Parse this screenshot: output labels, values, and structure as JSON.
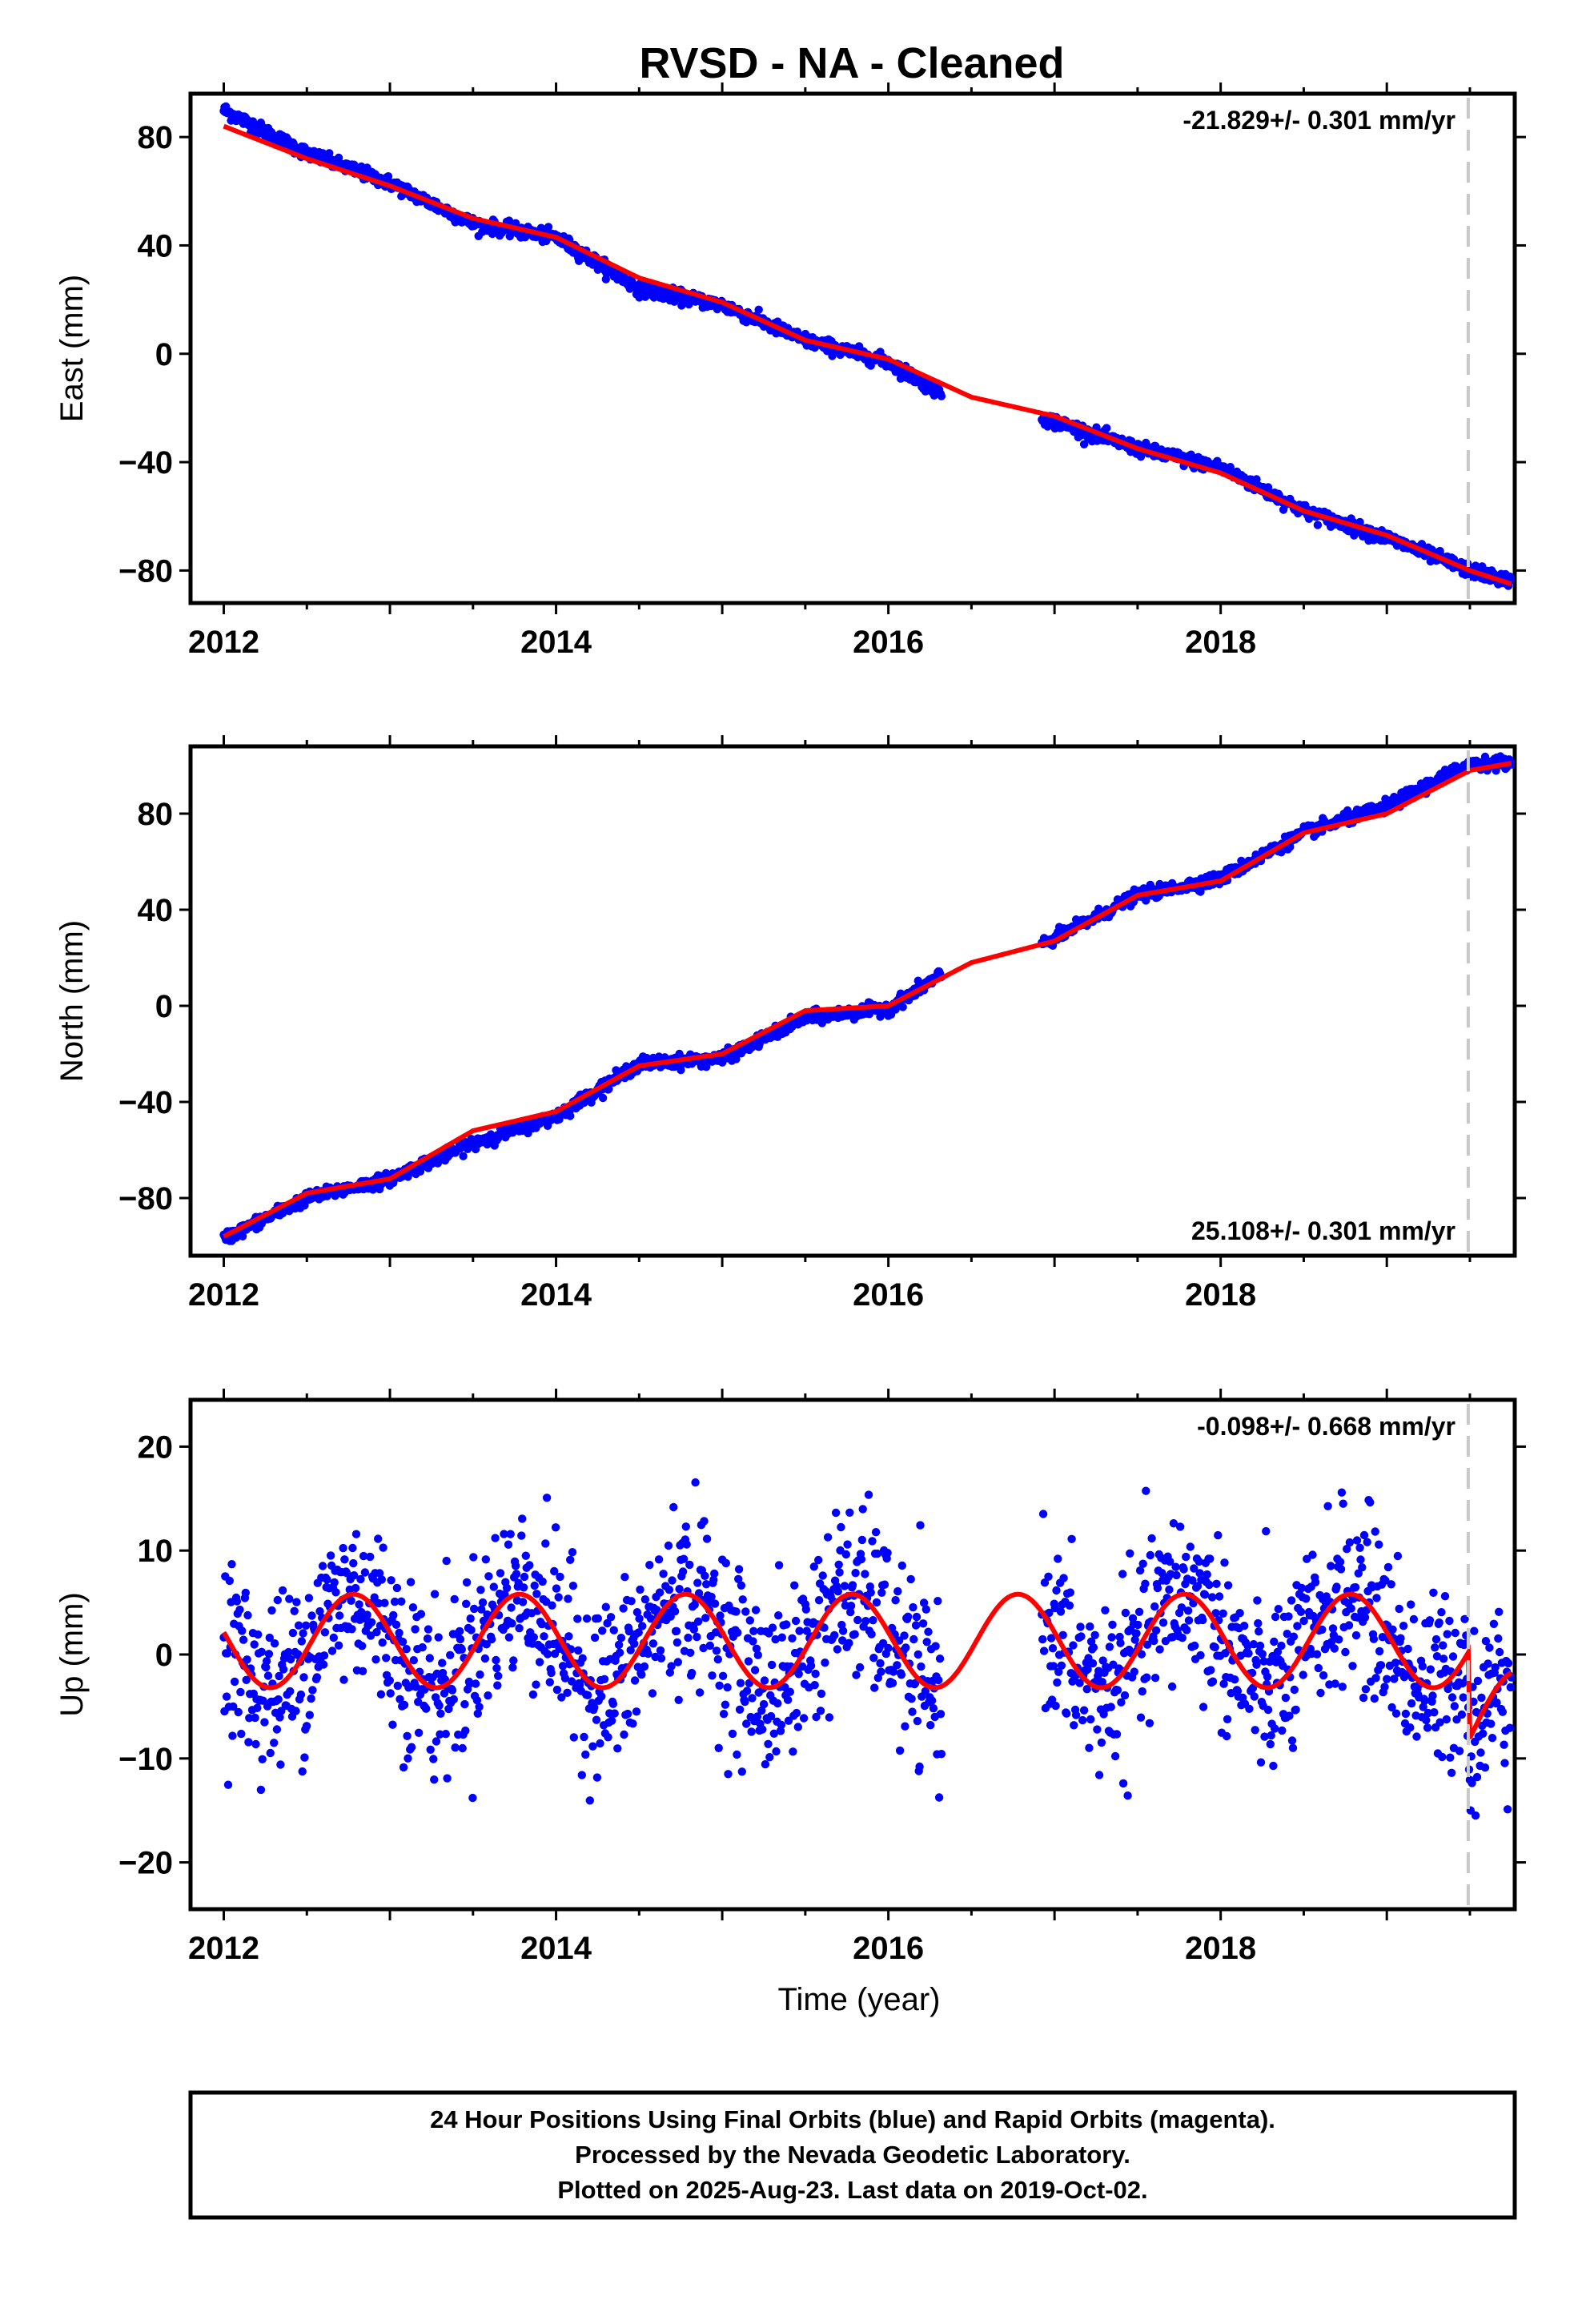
{
  "title": "RVSD  - NA - Cleaned",
  "footer": {
    "line1": "24 Hour Positions Using Final Orbits (blue) and Rapid Orbits (magenta).",
    "line2": "Processed by the Nevada Geodetic Laboratory.",
    "line3": "Plotted on 2025-Aug-23. Last data on 2019-Oct-02."
  },
  "colors": {
    "data": "#0000ff",
    "model": "#ff0000",
    "marker": "#c8c8c8"
  },
  "chart_data": [
    {
      "type": "scatter",
      "name": "east",
      "ylabel": "East (mm)",
      "xlabel": "",
      "xlim": [
        2011.8,
        2019.77
      ],
      "ylim": [
        -92,
        96
      ],
      "xticks": [
        2012,
        2014,
        2016,
        2018
      ],
      "xtick_labels": [
        "2012",
        "2014",
        "2016",
        "2018"
      ],
      "yticks": [
        80,
        40,
        0,
        -40,
        -80
      ],
      "ytick_labels": [
        "80",
        "40",
        "0",
        "−40",
        "−80"
      ],
      "rate_text": "-21.829+/- 0.301 mm/yr",
      "rate_position": "top-right",
      "equipment_change_x": 2019.49,
      "gaps": [
        [
          2016.32,
          2016.92
        ]
      ],
      "data_x": [
        2012.0,
        2012.5,
        2013.0,
        2013.5,
        2014.0,
        2014.5,
        2015.0,
        2015.5,
        2016.0,
        2016.3,
        2017.0,
        2017.5,
        2018.0,
        2018.5,
        2019.0,
        2019.5,
        2019.75
      ],
      "data_y": [
        90,
        74,
        63,
        48,
        43,
        24,
        18,
        5,
        -3,
        -14,
        -25,
        -35,
        -42,
        -58,
        -68,
        -80,
        -84
      ],
      "model_x": [
        2012.0,
        2012.5,
        2013.0,
        2013.5,
        2014.0,
        2014.5,
        2015.0,
        2015.5,
        2016.0,
        2016.5,
        2017.0,
        2017.5,
        2018.0,
        2018.5,
        2019.0,
        2019.5,
        2019.75
      ],
      "model_y": [
        84,
        72,
        62,
        50,
        43,
        28,
        19,
        5,
        -2,
        -16,
        -23,
        -35,
        -44,
        -58,
        -67,
        -80,
        -85
      ],
      "noise": 2.2
    },
    {
      "type": "scatter",
      "name": "north",
      "ylabel": "North (mm)",
      "xlabel": "",
      "xlim": [
        2011.8,
        2019.77
      ],
      "ylim": [
        -104,
        108
      ],
      "xticks": [
        2012,
        2014,
        2016,
        2018
      ],
      "xtick_labels": [
        "2012",
        "2014",
        "2016",
        "2018"
      ],
      "yticks": [
        80,
        40,
        0,
        -40,
        -80
      ],
      "ytick_labels": [
        "80",
        "40",
        "0",
        "−40",
        "−80"
      ],
      "rate_text": "25.108+/- 0.301 mm/yr",
      "rate_position": "bottom-right",
      "equipment_change_x": 2019.49,
      "gaps": [
        [
          2016.32,
          2016.92
        ]
      ],
      "data_x": [
        2012.0,
        2012.5,
        2013.0,
        2013.5,
        2014.0,
        2014.5,
        2015.0,
        2015.5,
        2016.0,
        2016.3,
        2017.0,
        2017.5,
        2018.0,
        2018.5,
        2019.0,
        2019.5,
        2019.75
      ],
      "data_y": [
        -97,
        -80,
        -72,
        -57,
        -46,
        -24,
        -22,
        -5,
        -1,
        12,
        28,
        46,
        53,
        72,
        83,
        101,
        101
      ],
      "model_x": [
        2012.0,
        2012.5,
        2013.0,
        2013.5,
        2014.0,
        2014.5,
        2015.0,
        2015.5,
        2016.0,
        2016.5,
        2017.0,
        2017.5,
        2018.0,
        2018.5,
        2019.0,
        2019.5,
        2019.75
      ],
      "model_y": [
        -96,
        -78,
        -72,
        -52,
        -44,
        -25,
        -20,
        -2,
        0,
        18,
        27,
        46,
        52,
        72,
        80,
        98,
        101
      ],
      "noise": 2.3
    },
    {
      "type": "scatter",
      "name": "up",
      "ylabel": "Up (mm)",
      "xlabel": "Time (year)",
      "xlim": [
        2011.8,
        2019.77
      ],
      "ylim": [
        -24.5,
        24.5
      ],
      "xticks": [
        2012,
        2014,
        2016,
        2018
      ],
      "xtick_labels": [
        "2012",
        "2014",
        "2016",
        "2018"
      ],
      "yticks": [
        20,
        10,
        0,
        -10,
        -20
      ],
      "ytick_labels": [
        "20",
        "10",
        "0",
        "−10",
        "−20"
      ],
      "rate_text": "-0.098+/- 0.668 mm/yr",
      "rate_position": "top-right",
      "equipment_change_x": 2019.49,
      "gaps": [
        [
          2016.32,
          2016.92
        ]
      ],
      "seasonal_amplitude": 4.5,
      "seasonal_phase_year": 2012.78,
      "seasonal_offset": 1.3,
      "post_offset_x": 2019.49,
      "post_offset_y": -8.5,
      "noise": 4.2
    }
  ]
}
